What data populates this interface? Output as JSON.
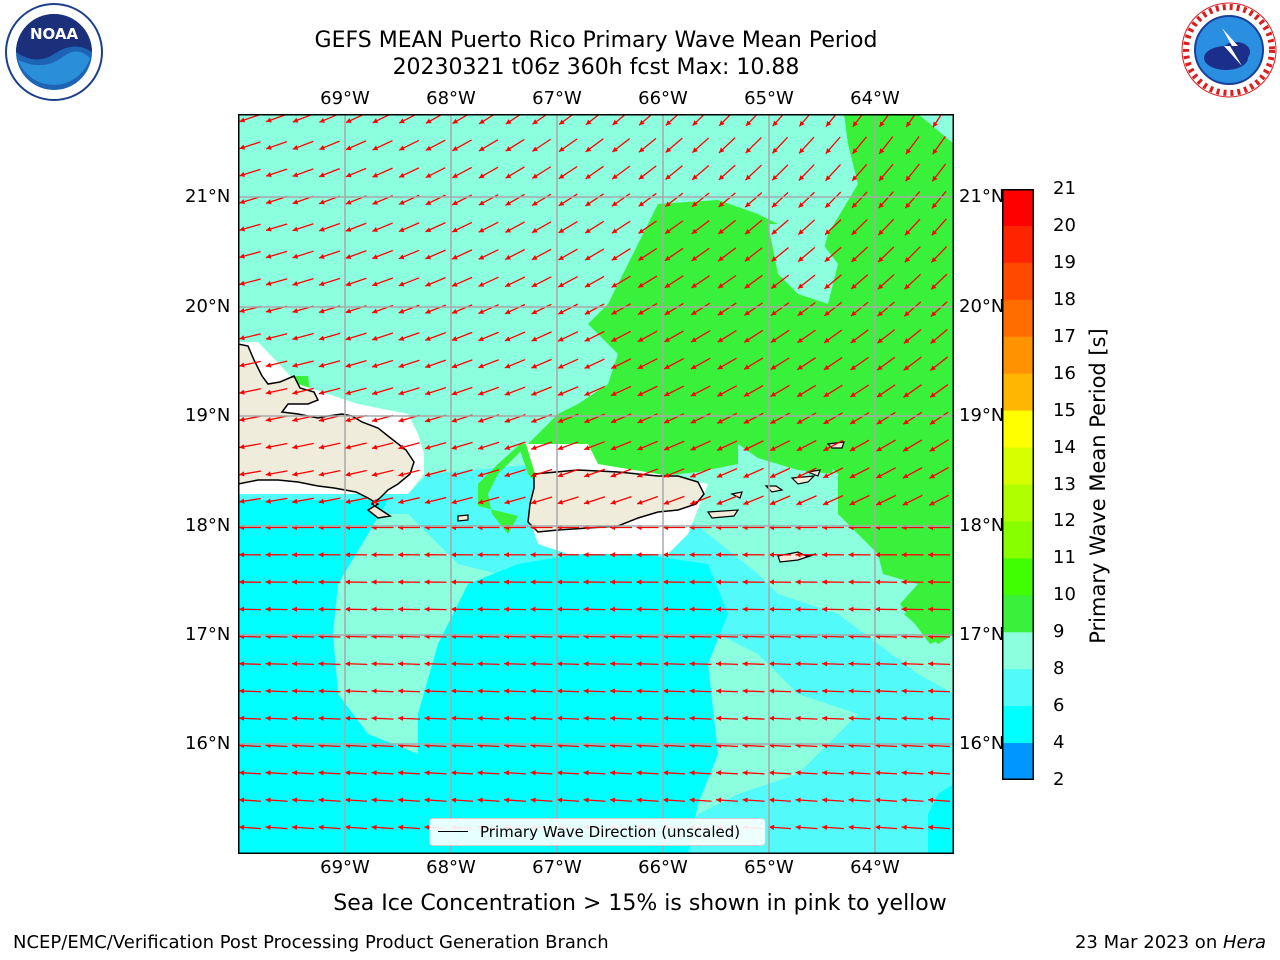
{
  "title_line1": "GEFS MEAN Puerto Rico Primary Wave Mean Period",
  "title_line2": "20230321 t06z 360h fcst   Max: 10.88",
  "logos": {
    "left": "noaa-logo",
    "right": "national-weather-service-logo"
  },
  "lon_labels": [
    "69°W",
    "68°W",
    "67°W",
    "66°W",
    "65°W",
    "64°W"
  ],
  "lat_labels": [
    "21°N",
    "20°N",
    "19°N",
    "18°N",
    "17°N",
    "16°N"
  ],
  "legend_label": "Primary Wave Direction (unscaled)",
  "colorbar": {
    "label": "Primary Wave Mean Period [s]",
    "ticks": [
      "21",
      "20",
      "19",
      "18",
      "17",
      "16",
      "15",
      "14",
      "13",
      "12",
      "11",
      "10",
      "9",
      "8",
      "6",
      "4",
      "2"
    ],
    "colors": [
      "#ff0000",
      "#ff2400",
      "#ff4800",
      "#ff6c00",
      "#ff9200",
      "#ffb600",
      "#ffda00",
      "#ffff00",
      "#d8ff00",
      "#b0ff00",
      "#88ff00",
      "#40ff00",
      "#39f03b",
      "#8cffde",
      "#52fbf9",
      "#00ffff",
      "#0096ff",
      "#0030ff",
      "#0000ff"
    ]
  },
  "bottom_note": "Sea Ice Concentration > 15% is shown in pink to yellow",
  "footer_left": "NCEP/EMC/Verification Post Processing Product Generation Branch",
  "footer_right_prefix": "23 Mar 2023 on ",
  "footer_right_host": "Hera",
  "colors": {
    "arrow": "#ff0000",
    "land": "#efecdc",
    "green": "#39f03b",
    "aqua": "#8cffde",
    "light_cyan": "#52fbf9",
    "cyan": "#00ffff"
  }
}
